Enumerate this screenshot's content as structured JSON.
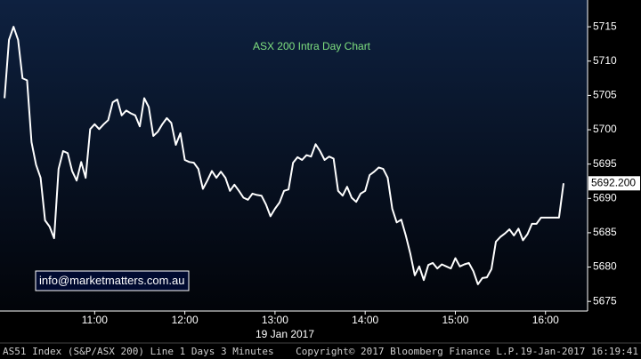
{
  "chart_data": {
    "type": "line",
    "title": "ASX 200 Intra Day Chart",
    "annotation": "info@marketmatters.com.au",
    "x_label": "19 Jan 2017",
    "footer_left": "AS51 Index (S&P/ASX 200) Line 1 Days 3 Minutes",
    "footer_center": "Copyright© 2017 Bloomberg Finance L.P.",
    "footer_right": "19-Jan-2017 16:19:41",
    "last_value_label": "5692.200",
    "x": [
      "10:00",
      "10:03",
      "10:06",
      "10:09",
      "10:12",
      "10:15",
      "10:18",
      "10:21",
      "10:24",
      "10:27",
      "10:30",
      "10:33",
      "10:36",
      "10:39",
      "10:42",
      "10:45",
      "10:48",
      "10:51",
      "10:54",
      "10:57",
      "11:00",
      "11:03",
      "11:06",
      "11:09",
      "11:12",
      "11:15",
      "11:18",
      "11:21",
      "11:24",
      "11:27",
      "11:30",
      "11:33",
      "11:36",
      "11:39",
      "11:42",
      "11:45",
      "11:48",
      "11:51",
      "11:54",
      "11:57",
      "12:00",
      "12:03",
      "12:06",
      "12:09",
      "12:12",
      "12:15",
      "12:18",
      "12:21",
      "12:24",
      "12:27",
      "12:30",
      "12:33",
      "12:36",
      "12:39",
      "12:42",
      "12:45",
      "12:48",
      "12:51",
      "12:54",
      "12:57",
      "13:00",
      "13:03",
      "13:06",
      "13:09",
      "13:12",
      "13:15",
      "13:18",
      "13:21",
      "13:24",
      "13:27",
      "13:30",
      "13:33",
      "13:36",
      "13:39",
      "13:42",
      "13:45",
      "13:48",
      "13:51",
      "13:54",
      "13:57",
      "14:00",
      "14:03",
      "14:06",
      "14:09",
      "14:12",
      "14:15",
      "14:18",
      "14:21",
      "14:24",
      "14:27",
      "14:30",
      "14:33",
      "14:36",
      "14:39",
      "14:42",
      "14:45",
      "14:48",
      "14:51",
      "14:54",
      "14:57",
      "15:00",
      "15:03",
      "15:06",
      "15:09",
      "15:12",
      "15:15",
      "15:18",
      "15:21",
      "15:24",
      "15:27",
      "15:30",
      "15:33",
      "15:36",
      "15:39",
      "15:42",
      "15:45",
      "15:48",
      "15:51",
      "15:54",
      "15:57",
      "16:00",
      "16:03",
      "16:06",
      "16:09",
      "16:12"
    ],
    "series": [
      {
        "color": "#ffffff",
        "values": [
          5704.6,
          5713.1,
          5715,
          5713.1,
          5707.5,
          5707.2,
          5698.2,
          5694.9,
          5693,
          5686.8,
          5685.9,
          5684.2,
          5694.3,
          5696.9,
          5696.6,
          5694,
          5692.6,
          5695.3,
          5693,
          5700.1,
          5700.8,
          5700.1,
          5700.8,
          5701.4,
          5704,
          5704.4,
          5702.1,
          5702.8,
          5702.4,
          5702.1,
          5700.5,
          5704.6,
          5703.3,
          5699.1,
          5699.7,
          5700.8,
          5701.7,
          5701,
          5697.8,
          5699.5,
          5695.6,
          5695.3,
          5695.2,
          5694.3,
          5691.4,
          5692.6,
          5694,
          5693,
          5693.9,
          5693,
          5691.1,
          5692,
          5691.1,
          5690.1,
          5689.8,
          5690.7,
          5690.5,
          5690.4,
          5689.1,
          5687.4,
          5688.5,
          5689.4,
          5691.1,
          5691.3,
          5695.2,
          5696,
          5695.6,
          5696.3,
          5696.1,
          5697.9,
          5696.9,
          5695.6,
          5696.1,
          5695.8,
          5691.1,
          5690.4,
          5691.7,
          5690.1,
          5689.5,
          5690.7,
          5691.1,
          5693.4,
          5693.9,
          5694.5,
          5694.3,
          5693,
          5688.5,
          5686.5,
          5686.9,
          5684.6,
          5682,
          5678.8,
          5680.1,
          5678.1,
          5680.3,
          5680.6,
          5679.8,
          5680.4,
          5680.1,
          5679.8,
          5681.3,
          5680.1,
          5680.4,
          5680.6,
          5679.4,
          5677.5,
          5678.4,
          5678.5,
          5679.7,
          5683.7,
          5684.4,
          5684.9,
          5685.5,
          5684.6,
          5685.6,
          5683.9,
          5684.8,
          5686.3,
          5686.3,
          5687.2,
          5687.2,
          5687.2,
          5687.2,
          5687.2,
          5692.2
        ]
      }
    ],
    "xlim": [
      "09:57",
      "16:28"
    ],
    "xticks": [
      "11:00",
      "12:00",
      "13:00",
      "14:00",
      "15:00",
      "16:00"
    ],
    "ylim": [
      5673.6,
      5718.9
    ],
    "yticks": [
      5675,
      5680,
      5685,
      5690,
      5695,
      5700,
      5705,
      5710,
      5715
    ]
  }
}
